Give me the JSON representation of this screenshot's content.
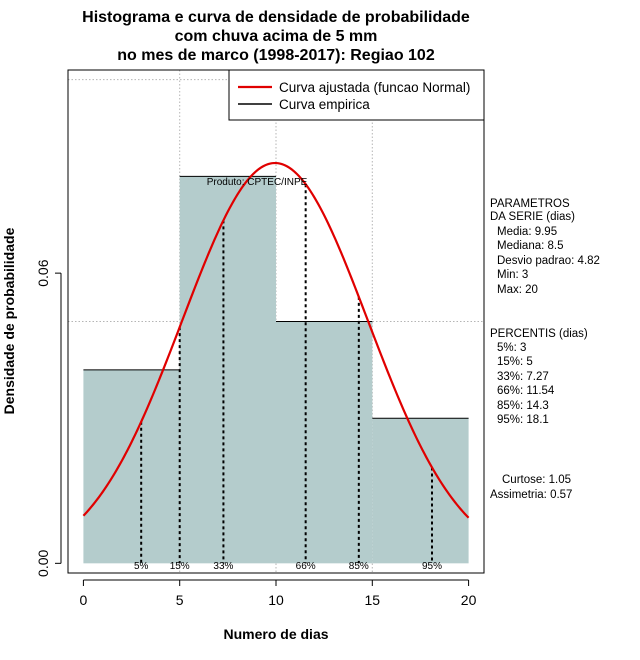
{
  "chart_data": {
    "type": "bar",
    "title_lines": [
      "Histograma e curva de densidade de probabilidade",
      "com chuva acima de 5 mm",
      "no mes de marco (1998-2017): Regiao 102"
    ],
    "xlabel": "Numero de dias",
    "ylabel": "Densidade de probabilidade",
    "xlim": [
      -0.8,
      20.8
    ],
    "ylim": [
      -0.002,
      0.102
    ],
    "x_ticks": [
      0,
      5,
      10,
      15,
      20
    ],
    "y_ticks": [
      0.0,
      0.06
    ],
    "y_tick_labels": [
      "0.00",
      "0.06"
    ],
    "grid": true,
    "grid_x": [
      5,
      10,
      15
    ],
    "grid_y": [
      0.05,
      0.1
    ],
    "bar_color": "#b4cccc",
    "bins": [
      {
        "x0": 0,
        "x1": 5,
        "density": 0.04
      },
      {
        "x0": 5,
        "x1": 10,
        "density": 0.08
      },
      {
        "x0": 10,
        "x1": 15,
        "density": 0.05
      },
      {
        "x0": 15,
        "x1": 20,
        "density": 0.03
      }
    ],
    "series": [
      {
        "name": "Curva ajustada (funcao Normal)",
        "color": "#e00000",
        "mean": 9.95,
        "sd": 4.82,
        "x_range": [
          0,
          20
        ]
      },
      {
        "name": "Curva empirica",
        "color": "#000000"
      }
    ],
    "legend_position": "top-right",
    "percentiles": [
      {
        "label": "5%",
        "x": 3
      },
      {
        "label": "15%",
        "x": 5
      },
      {
        "label": "33%",
        "x": 7.27
      },
      {
        "label": "66%",
        "x": 11.54
      },
      {
        "label": "85%",
        "x": 14.3
      },
      {
        "label": "95%",
        "x": 18.1
      }
    ],
    "annotation": "Produto: CPTEC/INPE"
  },
  "side_panel": {
    "params_heading": [
      "PARAMETROS",
      "DA SERIE (dias)"
    ],
    "params": [
      "Media: 9.95",
      "Mediana: 8.5",
      "Desvio padrao: 4.82",
      "Min: 3",
      "Max: 20"
    ],
    "percentis_heading": "PERCENTIS (dias)",
    "percentis": [
      "5%: 3",
      "15%: 5",
      "33%: 7.27",
      "66%: 11.54",
      "85%: 14.3",
      "95%: 18.1"
    ],
    "curtose": "Curtose: 1.05",
    "assimetria": "Assimetria: 0.57"
  }
}
